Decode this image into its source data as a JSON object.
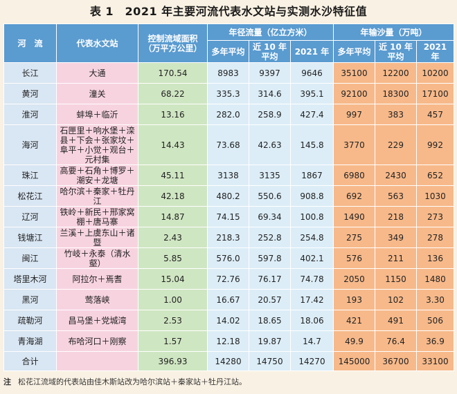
{
  "title": "表 1　2021 年主要河流代表水文站与实测水沙特征值",
  "headers": {
    "river": "河　流",
    "station": "代表水文站",
    "area": "控制流域面积（万平方公里）",
    "flow_group": "年径流量（亿立方米）",
    "sand_group": "年输沙量（万吨）",
    "avg": "多年平均",
    "recent10": "近 10 年平均",
    "y2021": "2021 年"
  },
  "rows": [
    {
      "river": "长江",
      "station": "大通",
      "area": "170.54",
      "f_avg": "8983",
      "f_10": "9397",
      "f_21": "9646",
      "s_avg": "35100",
      "s_10": "12200",
      "s_21": "10200"
    },
    {
      "river": "黄河",
      "station": "潼关",
      "area": "68.22",
      "f_avg": "335.3",
      "f_10": "314.6",
      "f_21": "395.1",
      "s_avg": "92100",
      "s_10": "18300",
      "s_21": "17100"
    },
    {
      "river": "淮河",
      "station": "蚌埠＋临沂",
      "area": "13.16",
      "f_avg": "282.0",
      "f_10": "258.9",
      "f_21": "427.4",
      "s_avg": "997",
      "s_10": "383",
      "s_21": "457"
    },
    {
      "river": "海河",
      "station": "石匣里＋响水堡＋滦县＋下会＋张家坟＋阜平＋小觉＋观台＋元村集",
      "area": "14.43",
      "f_avg": "73.68",
      "f_10": "42.63",
      "f_21": "145.8",
      "s_avg": "3770",
      "s_10": "229",
      "s_21": "992"
    },
    {
      "river": "珠江",
      "station": "高要＋石角＋博罗＋潮安＋龙塘",
      "area": "45.11",
      "f_avg": "3138",
      "f_10": "3135",
      "f_21": "1867",
      "s_avg": "6980",
      "s_10": "2430",
      "s_21": "652"
    },
    {
      "river": "松花江",
      "station": "哈尔滨＋秦家＋牡丹江",
      "area": "42.18",
      "f_avg": "480.2",
      "f_10": "550.6",
      "f_21": "908.8",
      "s_avg": "692",
      "s_10": "563",
      "s_21": "1030"
    },
    {
      "river": "辽河",
      "station": "铁岭＋新民＋邢家窝棚＋唐马寨",
      "area": "14.87",
      "f_avg": "74.15",
      "f_10": "69.34",
      "f_21": "100.8",
      "s_avg": "1490",
      "s_10": "218",
      "s_21": "273"
    },
    {
      "river": "钱塘江",
      "station": "兰溪＋上虞东山＋诸暨",
      "area": "2.43",
      "f_avg": "218.3",
      "f_10": "252.8",
      "f_21": "254.8",
      "s_avg": "275",
      "s_10": "349",
      "s_21": "278"
    },
    {
      "river": "闽江",
      "station": "竹岐＋永泰（清水壑）",
      "area": "5.85",
      "f_avg": "576.0",
      "f_10": "597.8",
      "f_21": "402.1",
      "s_avg": "576",
      "s_10": "211",
      "s_21": "136"
    },
    {
      "river": "塔里木河",
      "station": "阿拉尔＋焉耆",
      "area": "15.04",
      "f_avg": "72.76",
      "f_10": "76.17",
      "f_21": "74.78",
      "s_avg": "2050",
      "s_10": "1150",
      "s_21": "1480"
    },
    {
      "river": "黑河",
      "station": "莺落峡",
      "area": "1.00",
      "f_avg": "16.67",
      "f_10": "20.57",
      "f_21": "17.42",
      "s_avg": "193",
      "s_10": "102",
      "s_21": "3.30"
    },
    {
      "river": "疏勒河",
      "station": "昌马堡＋党城湾",
      "area": "2.53",
      "f_avg": "14.02",
      "f_10": "18.65",
      "f_21": "18.06",
      "s_avg": "421",
      "s_10": "491",
      "s_21": "506"
    },
    {
      "river": "青海湖",
      "station": "布哈河口＋刚察",
      "area": "1.57",
      "f_avg": "12.18",
      "f_10": "19.87",
      "f_21": "14.7",
      "s_avg": "49.9",
      "s_10": "76.4",
      "s_21": "36.9"
    },
    {
      "river": "合计",
      "station": "",
      "area": "396.93",
      "f_avg": "14280",
      "f_10": "14750",
      "f_21": "14270",
      "s_avg": "145000",
      "s_10": "36700",
      "s_21": "33100"
    }
  ],
  "note_label": "注",
  "note_text": "松花江流域的代表站由佳木斯站改为哈尔滨站＋秦家站＋牡丹江站。"
}
